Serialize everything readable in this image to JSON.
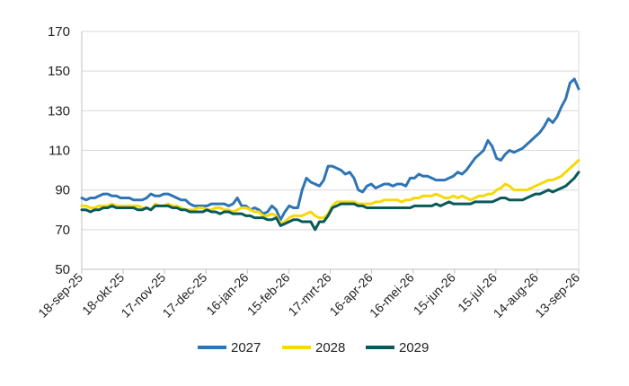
{
  "chart_data": {
    "type": "line",
    "title": "",
    "xlabel": "",
    "ylabel": "",
    "ylim": [
      50,
      170
    ],
    "yticks": [
      50,
      70,
      90,
      110,
      130,
      150,
      170
    ],
    "xticks": [
      "18-sep-25",
      "18-okt-25",
      "17-nov-25",
      "17-dec-25",
      "16-jan-26",
      "15-feb-26",
      "17-mrt-26",
      "16-apr-26",
      "16-mei-26",
      "15-jun-26",
      "15-jul-26",
      "14-aug-26",
      "13-sep-26"
    ],
    "grid": "horizontal",
    "legend_position": "bottom",
    "series": [
      {
        "name": "2027",
        "color": "#2E75B6",
        "values": [
          86,
          85,
          86,
          86,
          87,
          88,
          88,
          87,
          87,
          86,
          86,
          86,
          85,
          85,
          85,
          86,
          88,
          87,
          87,
          88,
          88,
          87,
          86,
          85,
          85,
          83,
          82,
          82,
          82,
          82,
          83,
          83,
          83,
          83,
          82,
          83,
          86,
          82,
          82,
          80,
          81,
          80,
          78,
          79,
          82,
          80,
          75,
          79,
          82,
          81,
          81,
          90,
          96,
          94,
          93,
          92,
          95,
          102,
          102,
          101,
          100,
          98,
          99,
          96,
          90,
          89,
          92,
          93,
          91,
          92,
          93,
          93,
          92,
          93,
          93,
          92,
          96,
          96,
          98,
          97,
          97,
          96,
          95,
          95,
          95,
          96,
          97,
          99,
          98,
          100,
          103,
          106,
          108,
          110,
          115,
          112,
          106,
          105,
          108,
          110,
          109,
          110,
          111,
          113,
          115,
          117,
          119,
          122,
          126,
          124,
          127,
          132,
          136,
          144,
          146,
          141
        ]
      },
      {
        "name": "2028",
        "color": "#F5D90A",
        "values": [
          82,
          82,
          81,
          81,
          82,
          82,
          82,
          83,
          82,
          82,
          82,
          82,
          82,
          82,
          81,
          81,
          80,
          83,
          82,
          82,
          83,
          82,
          82,
          81,
          80,
          80,
          80,
          81,
          81,
          80,
          80,
          81,
          81,
          80,
          80,
          79,
          80,
          81,
          81,
          80,
          79,
          79,
          77,
          77,
          78,
          77,
          73,
          74,
          76,
          77,
          77,
          77,
          78,
          79,
          77,
          76,
          76,
          78,
          82,
          84,
          84,
          84,
          84,
          84,
          83,
          83,
          83,
          83,
          84,
          84,
          85,
          85,
          85,
          85,
          84,
          85,
          85,
          86,
          86,
          87,
          87,
          87,
          88,
          87,
          86,
          86,
          87,
          86,
          87,
          86,
          85,
          86,
          87,
          87,
          88,
          88,
          90,
          91,
          93,
          92,
          90,
          90,
          90,
          90,
          91,
          92,
          93,
          94,
          95,
          95,
          96,
          97,
          99,
          101,
          103,
          105
        ]
      },
      {
        "name": "2029",
        "color": "#0A5959",
        "values": [
          80,
          80,
          79,
          80,
          80,
          81,
          81,
          82,
          81,
          81,
          81,
          81,
          81,
          80,
          80,
          81,
          80,
          82,
          82,
          82,
          82,
          81,
          81,
          80,
          80,
          79,
          79,
          79,
          79,
          80,
          79,
          79,
          78,
          79,
          79,
          78,
          78,
          78,
          77,
          77,
          76,
          76,
          76,
          75,
          75,
          76,
          72,
          73,
          74,
          75,
          75,
          74,
          74,
          74,
          70,
          74,
          74,
          77,
          81,
          82,
          83,
          83,
          83,
          83,
          82,
          82,
          81,
          81,
          81,
          81,
          81,
          81,
          81,
          81,
          81,
          81,
          81,
          82,
          82,
          82,
          82,
          82,
          83,
          82,
          83,
          84,
          83,
          83,
          83,
          83,
          83,
          84,
          84,
          84,
          84,
          84,
          85,
          86,
          86,
          85,
          85,
          85,
          85,
          86,
          87,
          88,
          88,
          89,
          90,
          89,
          90,
          91,
          92,
          94,
          96,
          99
        ]
      }
    ]
  }
}
